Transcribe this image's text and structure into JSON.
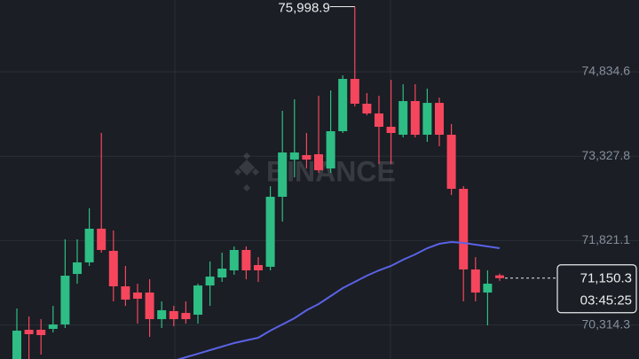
{
  "chart_data": {
    "type": "candlestick",
    "watermark": "BINANCE",
    "open": [
      69706,
      70228,
      70228,
      70244,
      70323,
      71225,
      71431,
      72033,
      71637,
      71004,
      70893,
      70893,
      70418,
      70561,
      70529,
      70497,
      71019,
      71162,
      71289,
      71653,
      71384,
      71353,
      72603,
      73267,
      73347,
      73362,
      73109,
      73774,
      74708,
      74265,
      74091,
      73853,
      73711,
      74312,
      73711,
      74280,
      73711,
      72745,
      71305,
      70893,
      71200
    ],
    "high": [
      70608,
      70466,
      70418,
      70655,
      71843,
      71843,
      72397,
      73742,
      72001,
      71368,
      71051,
      71130,
      70735,
      70655,
      70735,
      71051,
      71447,
      71605,
      71716,
      71716,
      71526,
      72792,
      74138,
      74344,
      73742,
      74407,
      74502,
      74771,
      75998.9,
      74455,
      74407,
      74692,
      74613,
      74613,
      74534,
      74375,
      73901,
      72792,
      71526,
      71289,
      71230
    ],
    "low": [
      69706,
      69706,
      69785,
      70180,
      70260,
      71051,
      71368,
      71605,
      70735,
      70655,
      70339,
      70101,
      70260,
      70291,
      70339,
      70339,
      70655,
      71083,
      71210,
      71130,
      71083,
      71289,
      72159,
      72951,
      73109,
      73030,
      73030,
      73742,
      74217,
      74059,
      73188,
      73188,
      73663,
      73663,
      73584,
      73505,
      72634,
      70735,
      70735,
      70307,
      71100
    ],
    "close": [
      70212,
      70149,
      70133,
      70323,
      71194,
      71431,
      72033,
      71653,
      71004,
      70766,
      70782,
      70418,
      70577,
      70418,
      70418,
      71019,
      71178,
      71320,
      71653,
      71289,
      71289,
      72603,
      73394,
      73394,
      73267,
      73077,
      73774,
      74708,
      74265,
      74091,
      73853,
      73742,
      74312,
      73711,
      74280,
      73711,
      72745,
      71305,
      70893,
      71051,
      71150.3
    ],
    "ma": {
      "color": "#5a62e6",
      "values": [
        null,
        null,
        null,
        null,
        null,
        null,
        null,
        null,
        null,
        null,
        null,
        null,
        null,
        69674,
        69737,
        69800,
        69864,
        69927,
        69991,
        70038,
        70086,
        70212,
        70323,
        70434,
        70577,
        70687,
        70830,
        70972,
        71083,
        71194,
        71289,
        71368,
        71479,
        71574,
        71685,
        71764,
        71795,
        71780,
        71748,
        71716,
        71685
      ]
    },
    "up_color": "#2ebd85",
    "down_color": "#f6465d",
    "ylim": [
      69706,
      76117
    ],
    "yticks": [
      {
        "value": 70314.3,
        "label": "70,314.3"
      },
      {
        "value": 71821.1,
        "label": "71,821.1"
      },
      {
        "value": 73327.8,
        "label": "73,327.8"
      },
      {
        "value": 74834.6,
        "label": "74,834.6"
      }
    ],
    "grid": true,
    "high_label": "75,998.9",
    "last_price_label": "71,150.3",
    "countdown": "03:45:25"
  }
}
